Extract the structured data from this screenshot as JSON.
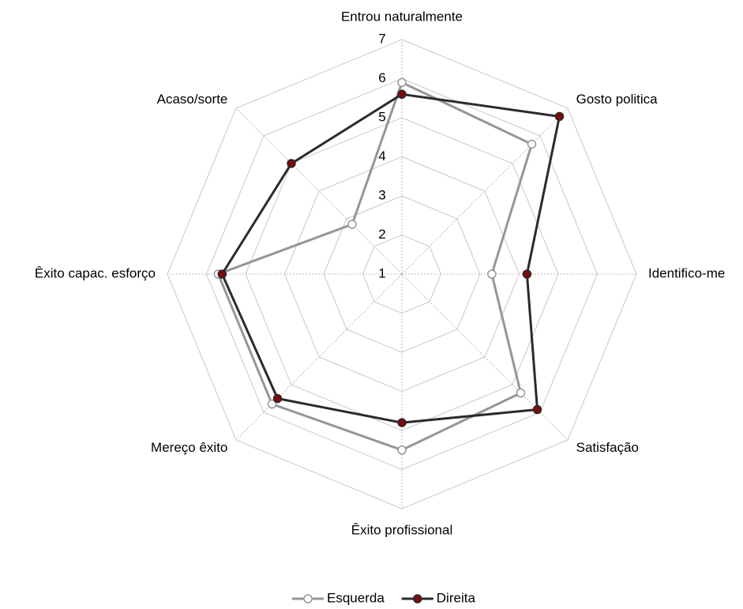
{
  "chart_data": {
    "type": "radar",
    "categories": [
      "Entrou naturalmente",
      "Gosto politica",
      "Identifico-me",
      "Satisfação",
      "Êxito profissional",
      "Mereço êxito",
      "Êxito capac. esforço",
      "Acaso/sorte"
    ],
    "series": [
      {
        "name": "Esquerda",
        "color": "#969696",
        "values": [
          5.9,
          5.7,
          3.3,
          5.3,
          5.5,
          5.7,
          5.7,
          2.8
        ]
      },
      {
        "name": "Direita",
        "color": "#2b2b2b",
        "values": [
          5.6,
          6.7,
          4.2,
          5.9,
          4.8,
          5.5,
          5.6,
          5.0
        ]
      }
    ],
    "ylim": [
      1,
      7
    ],
    "yticks": [
      1,
      2,
      3,
      4,
      5,
      6,
      7
    ],
    "grid": true,
    "legend": "bottom"
  }
}
